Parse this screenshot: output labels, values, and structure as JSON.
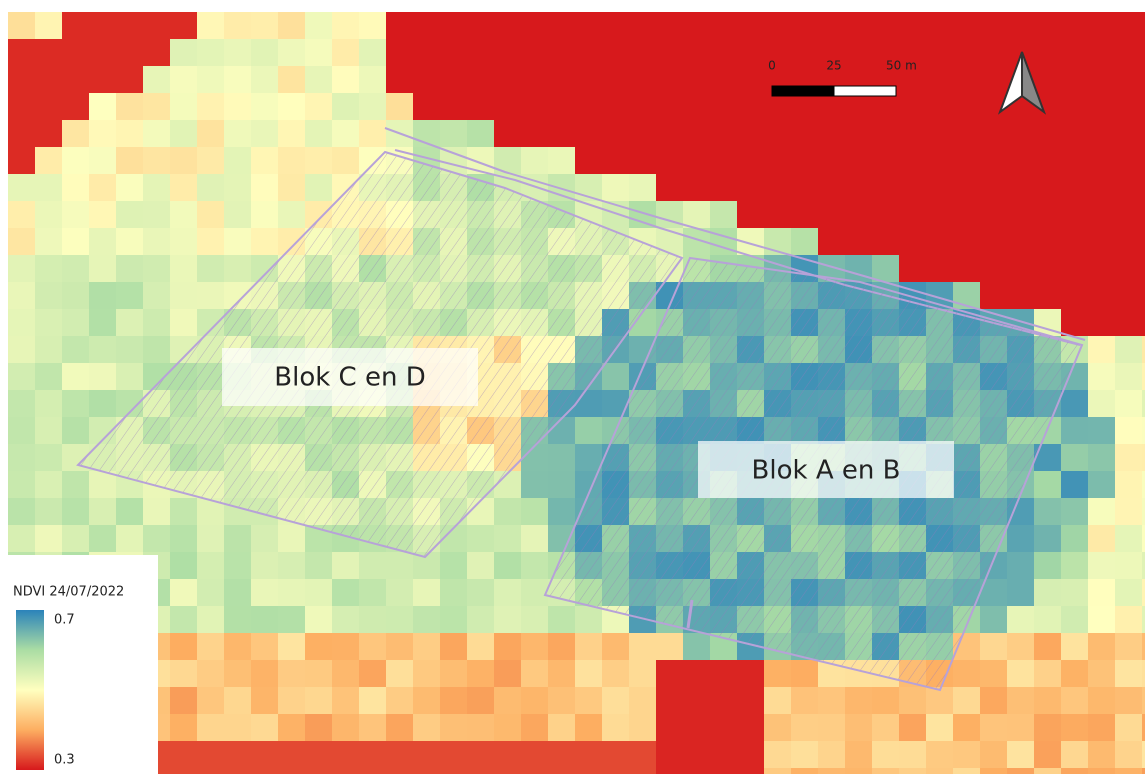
{
  "map": {
    "labels": [
      "Blok C en D",
      "Blok A en B"
    ],
    "legend": {
      "title": "NDVI 24/07/2022",
      "max": 0.7,
      "min": 0.3
    },
    "scale_bar": {
      "ticks": [
        0,
        25,
        {
          "value": 50,
          "label": "50 m"
        }
      ]
    }
  }
}
